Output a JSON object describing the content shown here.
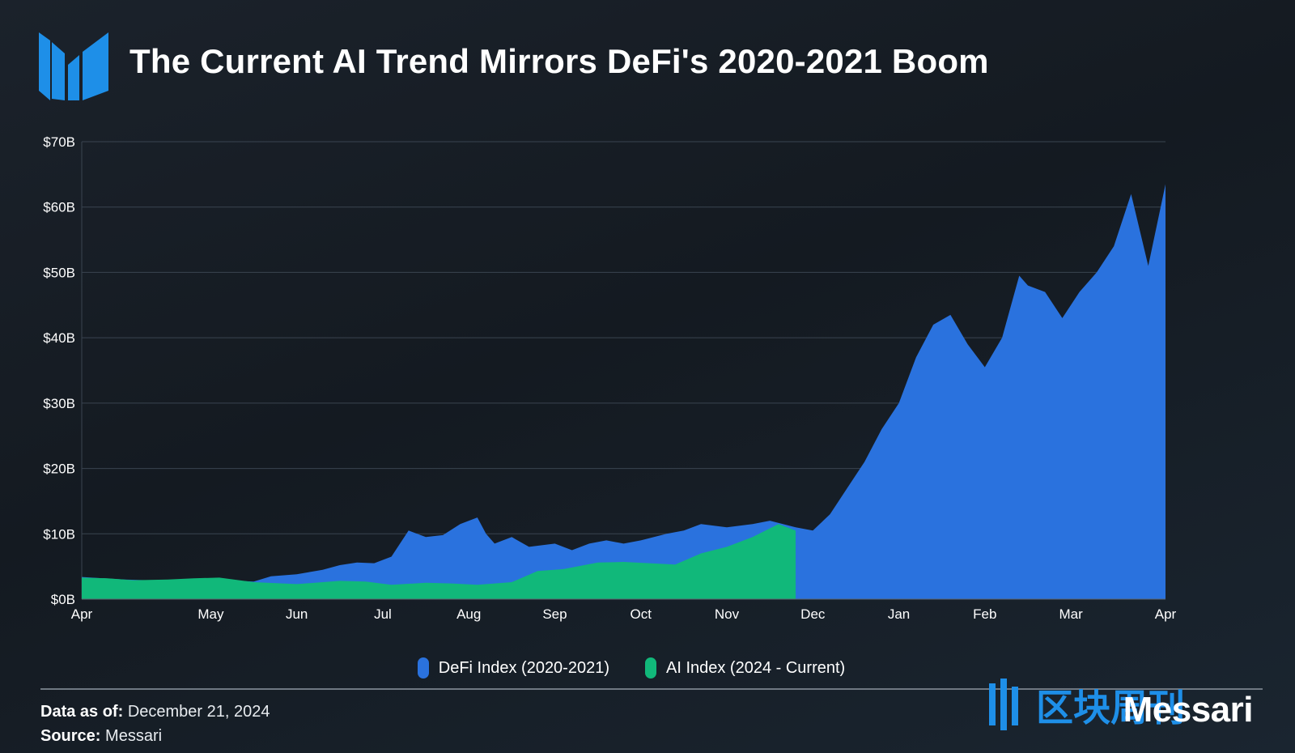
{
  "title": "The Current AI Trend Mirrors DeFi's 2020-2021 Boom",
  "legend": {
    "defi": "DeFi Index (2020-2021)",
    "ai": "AI Index (2024 - Current)"
  },
  "footer": {
    "data_as_of_label": "Data as of:",
    "data_as_of_value": "December 21, 2024",
    "source_label": "Source:",
    "source_value": "Messari",
    "brand": "Messari",
    "watermark": "区块周刊"
  },
  "colors": {
    "defi": "#2a72de",
    "ai": "#11b87a",
    "logo": "#1e8fe8",
    "grid": "#3a4450"
  },
  "chart_data": {
    "type": "area",
    "ylabel": "",
    "xlabel": "",
    "ylim": [
      0,
      70
    ],
    "y_ticks": [
      "$0B",
      "$10B",
      "$20B",
      "$30B",
      "$40B",
      "$50B",
      "$60B",
      "$70B"
    ],
    "x_ticks": [
      "Apr",
      "May",
      "Jun",
      "Jul",
      "Aug",
      "Sep",
      "Oct",
      "Nov",
      "Dec",
      "Jan",
      "Feb",
      "Mar",
      "Apr"
    ],
    "x_tick_months": [
      0,
      1.5,
      2.5,
      3.5,
      4.5,
      5.5,
      6.5,
      7.5,
      8.5,
      9.5,
      10.5,
      11.5,
      12.6
    ],
    "x_range_months": [
      0,
      12.6
    ],
    "series": [
      {
        "name": "DeFi Index (2020-2021)",
        "color": "#2a72de",
        "x": [
          0,
          0.5,
          1.0,
          1.5,
          2.0,
          2.2,
          2.5,
          2.8,
          3.0,
          3.2,
          3.4,
          3.6,
          3.8,
          4.0,
          4.2,
          4.4,
          4.6,
          4.7,
          4.8,
          5.0,
          5.2,
          5.5,
          5.7,
          5.9,
          6.1,
          6.3,
          6.5,
          6.8,
          7.0,
          7.2,
          7.5,
          7.8,
          8.0,
          8.3,
          8.5,
          8.7,
          8.9,
          9.1,
          9.3,
          9.5,
          9.7,
          9.9,
          10.1,
          10.3,
          10.5,
          10.7,
          10.9,
          11.0,
          11.2,
          11.4,
          11.6,
          11.8,
          12.0,
          12.2,
          12.4,
          12.6
        ],
        "values": [
          3.4,
          3.0,
          2.8,
          3.0,
          2.7,
          3.5,
          3.8,
          4.5,
          5.2,
          5.6,
          5.5,
          6.5,
          10.5,
          9.5,
          9.8,
          11.5,
          12.5,
          10.0,
          8.5,
          9.5,
          8.0,
          8.5,
          7.5,
          8.5,
          9.0,
          8.5,
          9.0,
          10.0,
          10.5,
          11.5,
          11.0,
          11.5,
          12.0,
          11.0,
          10.5,
          13.0,
          17.0,
          21.0,
          26.0,
          30.0,
          37.0,
          42.0,
          43.5,
          39.0,
          35.5,
          40.0,
          49.5,
          48.0,
          47.0,
          43.0,
          47.0,
          50.0,
          54.0,
          62.0,
          51.0,
          63.5
        ]
      },
      {
        "name": "AI Index (2024 - Current)",
        "color": "#11b87a",
        "x": [
          0,
          0.3,
          0.6,
          1.0,
          1.3,
          1.6,
          2.0,
          2.5,
          3.0,
          3.3,
          3.6,
          4.0,
          4.3,
          4.6,
          5.0,
          5.3,
          5.6,
          6.0,
          6.3,
          6.6,
          6.9,
          7.2,
          7.5,
          7.8,
          8.1,
          8.3
        ],
        "values": [
          3.3,
          3.2,
          2.9,
          3.0,
          3.2,
          3.3,
          2.6,
          2.3,
          2.8,
          2.7,
          2.2,
          2.5,
          2.4,
          2.2,
          2.6,
          4.3,
          4.6,
          5.6,
          5.7,
          5.5,
          5.3,
          7.0,
          8.0,
          9.5,
          11.5,
          10.5
        ]
      }
    ]
  }
}
